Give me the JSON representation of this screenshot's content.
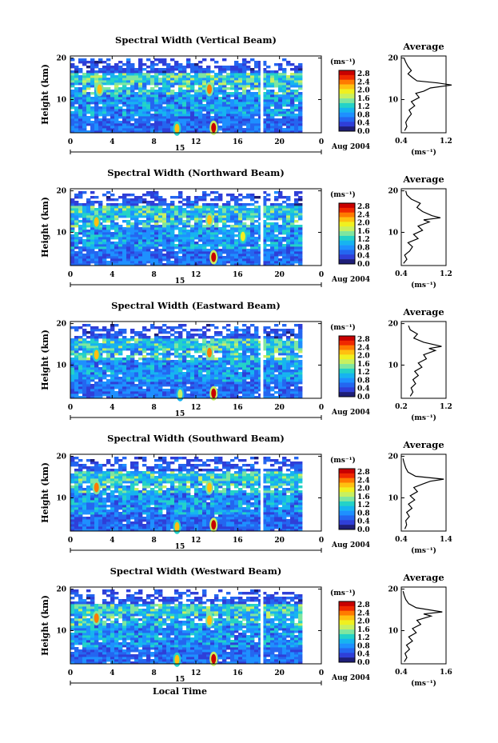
{
  "colors": {
    "colorbar": [
      "#1e1e78",
      "#2f3fd8",
      "#2466f0",
      "#1e90ff",
      "#16b4f0",
      "#24d2c8",
      "#7fe6a0",
      "#c8f060",
      "#f0f020",
      "#ffc010",
      "#ff7a00",
      "#f02800",
      "#c80000"
    ],
    "line": "#000000",
    "gap": "#ffffff"
  },
  "chart_data": [
    {
      "type": "heatmap",
      "title": "Spectral Width (Vertical Beam)",
      "ylabel": "Height (km)",
      "xlabel": "",
      "x_ticks": [
        "0",
        "4",
        "8",
        "12",
        "16",
        "20",
        "0"
      ],
      "xlim": [
        0,
        24
      ],
      "y_ticks": [
        "20",
        "10"
      ],
      "ylim": [
        2,
        20.5
      ],
      "day_label": "15",
      "date_label": "Aug 2004",
      "colorbar": {
        "unit": "(ms⁻¹)",
        "ticks": [
          "2.8",
          "2.4",
          "2.0",
          "1.6",
          "1.2",
          "0.8",
          "0.4",
          "0.0"
        ]
      },
      "data_gap_local_time": 18.3,
      "hotspots": [
        {
          "x": 13.7,
          "y": 3.2,
          "value": 2.8
        },
        {
          "x": 13.3,
          "y": 12.5,
          "value": 2.4
        },
        {
          "x": 2.8,
          "y": 12.5,
          "value": 2.2
        },
        {
          "x": 10.2,
          "y": 3.0,
          "value": 2.0
        }
      ],
      "average": {
        "title": "Average",
        "xlabel": "(ms⁻¹)",
        "x_ticks": [
          "0.4",
          "1.2"
        ],
        "xlim": [
          0.4,
          1.2
        ],
        "y_ticks": [
          "20",
          "10"
        ],
        "profile": [
          [
            0.46,
            2.5
          ],
          [
            0.5,
            3.5
          ],
          [
            0.48,
            4.5
          ],
          [
            0.52,
            5.5
          ],
          [
            0.58,
            6.5
          ],
          [
            0.54,
            7.5
          ],
          [
            0.64,
            8.5
          ],
          [
            0.58,
            9.5
          ],
          [
            0.72,
            10.5
          ],
          [
            0.66,
            11.5
          ],
          [
            0.8,
            12.0
          ],
          [
            0.92,
            12.8
          ],
          [
            1.3,
            13.5
          ],
          [
            1.05,
            14.0
          ],
          [
            0.68,
            14.5
          ],
          [
            0.6,
            15.3
          ],
          [
            0.52,
            16.2
          ],
          [
            0.58,
            17.0
          ],
          [
            0.52,
            18.0
          ],
          [
            0.48,
            19.0
          ],
          [
            0.45,
            20.0
          ]
        ]
      }
    },
    {
      "type": "heatmap",
      "title": "Spectral Width (Northward Beam)",
      "ylabel": "Height (km)",
      "xlabel": "",
      "x_ticks": [
        "0",
        "4",
        "8",
        "12",
        "16",
        "20",
        "0"
      ],
      "xlim": [
        0,
        24
      ],
      "y_ticks": [
        "20",
        "10"
      ],
      "ylim": [
        2,
        20.5
      ],
      "day_label": "15",
      "date_label": "Aug 2004",
      "colorbar": {
        "unit": "(ms⁻¹)",
        "ticks": [
          "2.8",
          "2.4",
          "2.0",
          "1.6",
          "1.2",
          "0.8",
          "0.4",
          "0.0"
        ]
      },
      "data_gap_local_time": 18.3,
      "hotspots": [
        {
          "x": 13.7,
          "y": 4.0,
          "value": 2.8
        },
        {
          "x": 13.3,
          "y": 13.0,
          "value": 2.2
        },
        {
          "x": 2.5,
          "y": 12.5,
          "value": 2.0
        },
        {
          "x": 16.5,
          "y": 9.0,
          "value": 1.8
        }
      ],
      "average": {
        "title": "Average",
        "xlabel": "(ms⁻¹)",
        "x_ticks": [
          "0.4",
          "1.2"
        ],
        "xlim": [
          0.4,
          1.2
        ],
        "y_ticks": [
          "20",
          "10"
        ],
        "profile": [
          [
            0.44,
            2.5
          ],
          [
            0.5,
            3.5
          ],
          [
            0.46,
            4.5
          ],
          [
            0.55,
            5.5
          ],
          [
            0.6,
            6.5
          ],
          [
            0.52,
            7.5
          ],
          [
            0.7,
            8.5
          ],
          [
            0.62,
            9.5
          ],
          [
            0.78,
            10.5
          ],
          [
            0.7,
            11.5
          ],
          [
            0.9,
            12.5
          ],
          [
            0.8,
            13.0
          ],
          [
            1.1,
            13.5
          ],
          [
            0.95,
            14.0
          ],
          [
            0.78,
            15.0
          ],
          [
            0.68,
            16.0
          ],
          [
            0.74,
            17.0
          ],
          [
            0.58,
            18.0
          ],
          [
            0.5,
            19.0
          ],
          [
            0.48,
            20.0
          ]
        ]
      }
    },
    {
      "type": "heatmap",
      "title": "Spectral Width (Eastward Beam)",
      "ylabel": "Height (km)",
      "xlabel": "",
      "x_ticks": [
        "0",
        "4",
        "8",
        "12",
        "16",
        "20",
        "0"
      ],
      "xlim": [
        0,
        24
      ],
      "y_ticks": [
        "20",
        "10"
      ],
      "ylim": [
        2,
        20.5
      ],
      "day_label": "15",
      "date_label": "Aug 2004",
      "colorbar": {
        "unit": "(ms⁻¹)",
        "ticks": [
          "2.8",
          "2.4",
          "2.0",
          "1.6",
          "1.2",
          "0.8",
          "0.4",
          "0.0"
        ]
      },
      "data_gap_local_time": 18.3,
      "hotspots": [
        {
          "x": 13.7,
          "y": 3.2,
          "value": 2.8
        },
        {
          "x": 13.3,
          "y": 13.0,
          "value": 2.4
        },
        {
          "x": 2.5,
          "y": 12.5,
          "value": 2.0
        },
        {
          "x": 10.5,
          "y": 3.0,
          "value": 1.6
        }
      ],
      "average": {
        "title": "Average",
        "xlabel": "(ms⁻¹)",
        "x_ticks": [
          "0.2",
          "1.2"
        ],
        "xlim": [
          0.2,
          1.2
        ],
        "y_ticks": [
          "20",
          "10"
        ],
        "profile": [
          [
            0.4,
            2.5
          ],
          [
            0.46,
            3.5
          ],
          [
            0.42,
            4.5
          ],
          [
            0.52,
            5.5
          ],
          [
            0.46,
            6.5
          ],
          [
            0.58,
            7.5
          ],
          [
            0.5,
            8.5
          ],
          [
            0.66,
            9.5
          ],
          [
            0.58,
            10.5
          ],
          [
            0.76,
            11.5
          ],
          [
            0.7,
            12.5
          ],
          [
            0.96,
            13.5
          ],
          [
            0.82,
            14.0
          ],
          [
            1.1,
            14.5
          ],
          [
            0.7,
            15.5
          ],
          [
            0.48,
            16.5
          ],
          [
            0.56,
            17.5
          ],
          [
            0.4,
            18.5
          ],
          [
            0.36,
            19.5
          ]
        ]
      }
    },
    {
      "type": "heatmap",
      "title": "Spectral Width (Southward Beam)",
      "ylabel": "Height (km)",
      "xlabel": "",
      "x_ticks": [
        "0",
        "4",
        "8",
        "12",
        "16",
        "20",
        "0"
      ],
      "xlim": [
        0,
        24
      ],
      "y_ticks": [
        "20",
        "10"
      ],
      "ylim": [
        2,
        20.5
      ],
      "day_label": "15",
      "date_label": "Aug 2004",
      "colorbar": {
        "unit": "(ms⁻¹)",
        "ticks": [
          "2.8",
          "2.4",
          "2.0",
          "1.6",
          "1.2",
          "0.8",
          "0.4",
          "0.0"
        ]
      },
      "data_gap_local_time": 18.3,
      "hotspots": [
        {
          "x": 13.7,
          "y": 3.5,
          "value": 2.8
        },
        {
          "x": 13.3,
          "y": 12.5,
          "value": 2.2
        },
        {
          "x": 2.5,
          "y": 12.5,
          "value": 2.4
        },
        {
          "x": 10.2,
          "y": 3.0,
          "value": 2.0
        }
      ],
      "average": {
        "title": "Average",
        "xlabel": "(ms⁻¹)",
        "x_ticks": [
          "0.4",
          "1.4"
        ],
        "xlim": [
          0.4,
          1.4
        ],
        "y_ticks": [
          "20",
          "10"
        ],
        "profile": [
          [
            0.48,
            2.5
          ],
          [
            0.52,
            3.5
          ],
          [
            0.5,
            4.5
          ],
          [
            0.58,
            5.5
          ],
          [
            0.52,
            6.5
          ],
          [
            0.64,
            7.5
          ],
          [
            0.56,
            8.5
          ],
          [
            0.7,
            9.5
          ],
          [
            0.6,
            10.5
          ],
          [
            0.76,
            11.5
          ],
          [
            0.68,
            12.5
          ],
          [
            0.92,
            13.5
          ],
          [
            1.05,
            14.0
          ],
          [
            1.35,
            14.5
          ],
          [
            0.72,
            15.2
          ],
          [
            0.55,
            16.2
          ],
          [
            0.5,
            17.2
          ],
          [
            0.46,
            18.5
          ],
          [
            0.44,
            19.5
          ]
        ]
      }
    },
    {
      "type": "heatmap",
      "title": "Spectral Width (Westward Beam)",
      "ylabel": "Height (km)",
      "xlabel": "Local Time",
      "x_ticks": [
        "0",
        "4",
        "8",
        "12",
        "16",
        "20",
        "0"
      ],
      "xlim": [
        0,
        24
      ],
      "y_ticks": [
        "20",
        "10"
      ],
      "ylim": [
        2,
        20.5
      ],
      "day_label": "15",
      "date_label": "Aug 2004",
      "colorbar": {
        "unit": "(ms⁻¹)",
        "ticks": [
          "2.8",
          "2.4",
          "2.0",
          "1.6",
          "1.2",
          "0.8",
          "0.4",
          "0.0"
        ]
      },
      "data_gap_local_time": 18.3,
      "hotspots": [
        {
          "x": 13.7,
          "y": 3.2,
          "value": 2.8
        },
        {
          "x": 2.5,
          "y": 13.0,
          "value": 2.4
        },
        {
          "x": 13.3,
          "y": 12.5,
          "value": 2.2
        },
        {
          "x": 10.2,
          "y": 3.0,
          "value": 2.0
        }
      ],
      "average": {
        "title": "Average",
        "xlabel": "(ms⁻¹)",
        "x_ticks": [
          "0.4",
          "1.6"
        ],
        "xlim": [
          0.4,
          1.6
        ],
        "y_ticks": [
          "20",
          "10"
        ],
        "profile": [
          [
            0.48,
            2.5
          ],
          [
            0.55,
            3.5
          ],
          [
            0.5,
            4.5
          ],
          [
            0.62,
            5.5
          ],
          [
            0.54,
            6.5
          ],
          [
            0.7,
            7.5
          ],
          [
            0.6,
            8.5
          ],
          [
            0.8,
            9.5
          ],
          [
            0.7,
            10.5
          ],
          [
            0.92,
            11.5
          ],
          [
            0.82,
            12.5
          ],
          [
            1.2,
            13.5
          ],
          [
            1.0,
            14.0
          ],
          [
            1.5,
            14.5
          ],
          [
            0.8,
            15.5
          ],
          [
            0.6,
            16.5
          ],
          [
            0.52,
            17.5
          ],
          [
            0.48,
            18.5
          ],
          [
            0.45,
            19.5
          ]
        ]
      }
    }
  ]
}
